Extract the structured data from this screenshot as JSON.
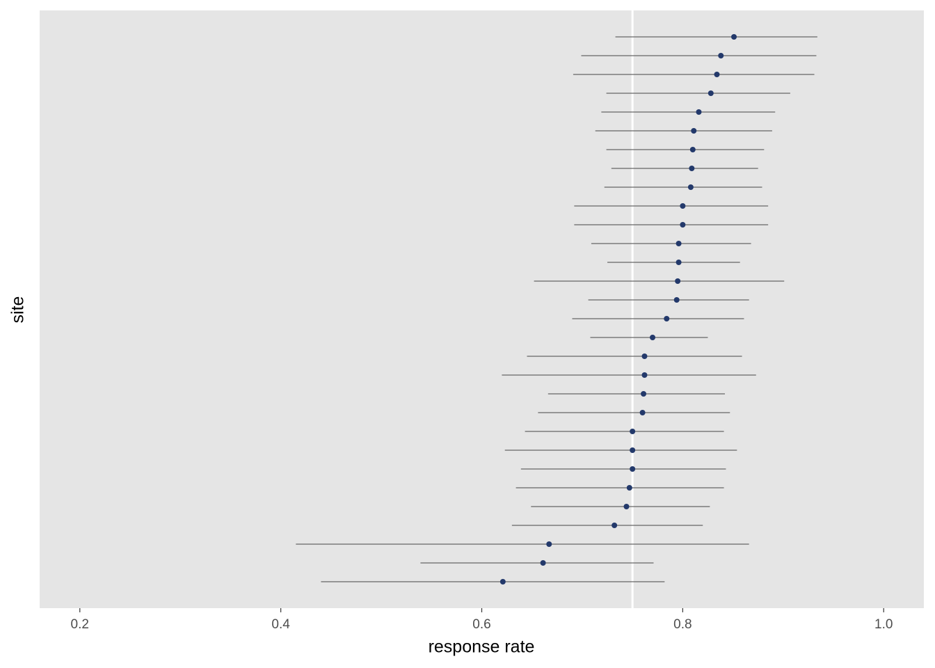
{
  "chart_data": {
    "type": "pointrange",
    "xlabel": "response rate",
    "ylabel": "site",
    "xlim": [
      0.16,
      1.04
    ],
    "xticks": [
      0.2,
      0.4,
      0.6,
      0.8,
      {
        "value": 1,
        "label": "1.0"
      }
    ],
    "reference_line": 0.75,
    "reference_color": "#ffffff",
    "panel_color": "#e5e5e5",
    "point_color": "#23396b",
    "range_color": "#666666",
    "grid": false,
    "values": [
      0.851,
      0.838,
      0.834,
      0.828,
      0.816,
      0.811,
      0.81,
      0.809,
      0.808,
      0.8,
      0.8,
      0.796,
      0.796,
      0.795,
      0.794,
      0.784,
      0.77,
      0.762,
      0.762,
      0.761,
      0.76,
      0.75,
      0.75,
      0.75,
      0.747,
      0.744,
      0.732,
      0.667,
      0.661,
      0.621
    ],
    "lower": [
      0.733,
      0.699,
      0.691,
      0.724,
      0.719,
      0.713,
      0.724,
      0.729,
      0.722,
      0.692,
      0.692,
      0.709,
      0.725,
      0.652,
      0.706,
      0.69,
      0.708,
      0.645,
      0.62,
      0.666,
      0.656,
      0.643,
      0.623,
      0.639,
      0.634,
      0.649,
      0.63,
      0.415,
      0.539,
      0.44
    ],
    "upper": [
      0.934,
      0.933,
      0.931,
      0.907,
      0.892,
      0.889,
      0.881,
      0.875,
      0.879,
      0.885,
      0.885,
      0.868,
      0.857,
      0.901,
      0.866,
      0.861,
      0.825,
      0.859,
      0.873,
      0.842,
      0.847,
      0.841,
      0.854,
      0.843,
      0.841,
      0.827,
      0.82,
      0.866,
      0.771,
      0.782
    ]
  }
}
